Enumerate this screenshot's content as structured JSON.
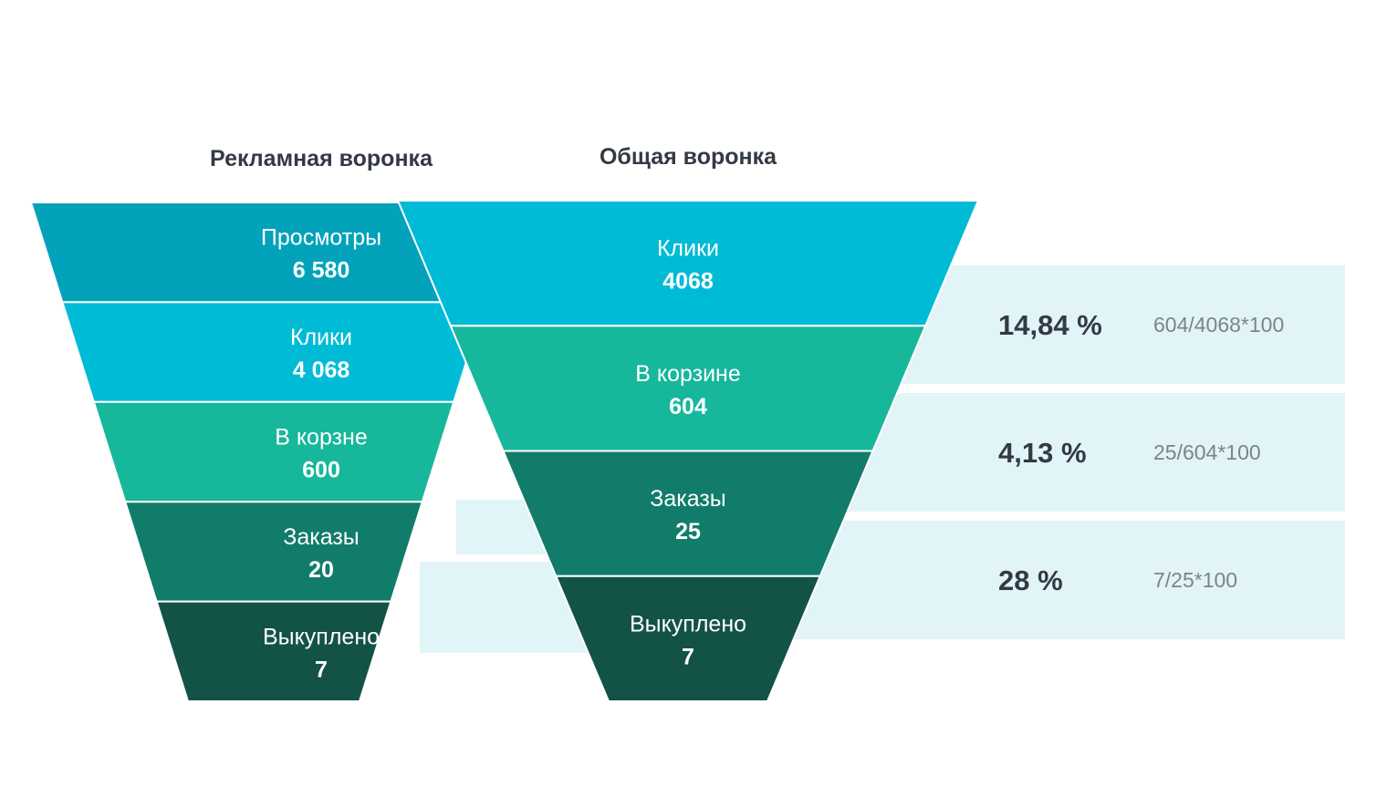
{
  "chart_data": [
    {
      "type": "funnel",
      "title": "Рекламная воронка",
      "stages": [
        {
          "label": "Просмотры",
          "value_text": "6 580",
          "value": 6580,
          "color": "#02A3BA"
        },
        {
          "label": "Клики",
          "value_text": "4 068",
          "value": 4068,
          "color": "#00BBD6"
        },
        {
          "label": "В корзне",
          "value_text": "600",
          "value": 600,
          "color": "#17B79C"
        },
        {
          "label": "Заказы",
          "value_text": "20",
          "value": 20,
          "color": "#127C6A"
        },
        {
          "label": "Выкуплено",
          "value_text": "7",
          "value": 7,
          "color": "#135247"
        }
      ]
    },
    {
      "type": "funnel",
      "title": "Общая воронка",
      "stages": [
        {
          "label": "Клики",
          "value_text": "4068",
          "value": 4068,
          "color": "#00BBD6"
        },
        {
          "label": "В корзине",
          "value_text": "604",
          "value": 604,
          "color": "#17B79C"
        },
        {
          "label": "Заказы",
          "value_text": "25",
          "value": 25,
          "color": "#127C6A"
        },
        {
          "label": "Выкуплено",
          "value_text": "7",
          "value": 7,
          "color": "#135247"
        }
      ],
      "conversions": [
        {
          "percent_text": "14,84 %",
          "percent": 14.84,
          "formula": "604/4068*100"
        },
        {
          "percent_text": "4,13 %",
          "percent": 4.13,
          "formula": "25/604*100"
        },
        {
          "percent_text": "28 %",
          "percent": 28,
          "formula": "7/25*100"
        }
      ]
    }
  ],
  "colors": {
    "title": "#333A44",
    "band": "#E1F4F8",
    "percent_text": "#333A44",
    "formula_text": "#7E8389",
    "stage_text": "#FFFFFF",
    "separator": "#FFFFFF"
  }
}
